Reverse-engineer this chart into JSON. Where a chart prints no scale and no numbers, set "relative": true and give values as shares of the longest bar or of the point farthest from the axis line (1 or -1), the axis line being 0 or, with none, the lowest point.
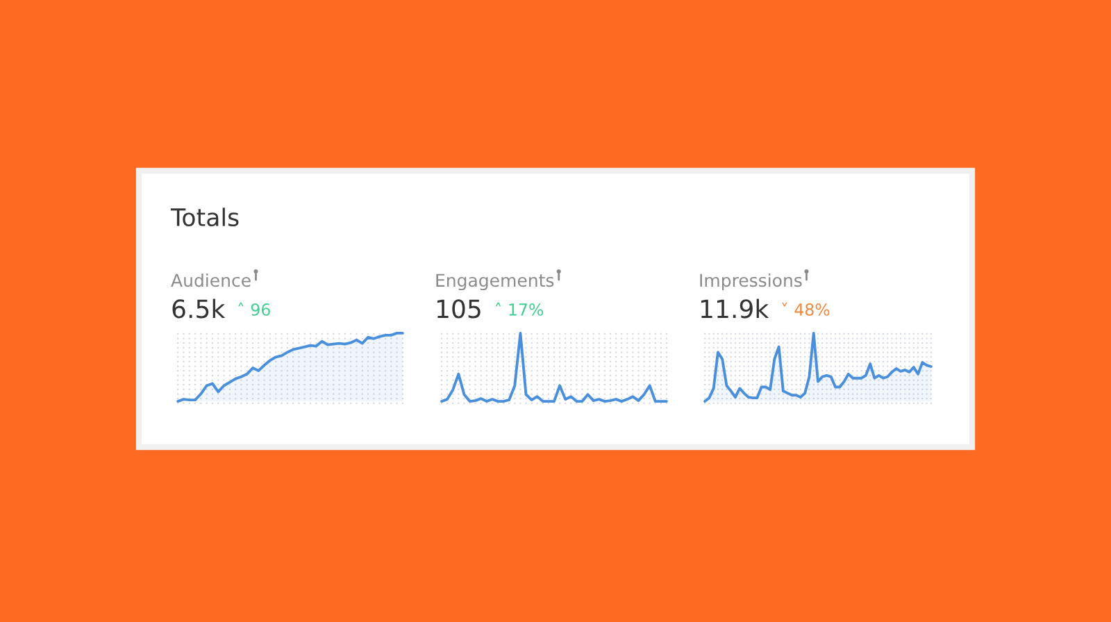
{
  "chart_data": [
    {
      "type": "other",
      "title": "Totals"
    },
    {
      "type": "area",
      "title": "Audience",
      "subtitle": "6.5k",
      "annotations": [
        "˄ 96"
      ],
      "relative": true,
      "grid": "x",
      "color": "#4a8fdc",
      "categories": [
        null,
        null,
        null,
        null,
        null,
        null,
        null,
        null,
        null,
        null,
        null,
        null,
        null,
        null,
        null,
        null,
        null,
        null,
        null,
        null,
        null,
        null,
        null,
        null,
        null,
        null,
        null,
        null,
        null,
        null,
        null,
        null,
        null,
        null,
        null,
        null,
        null,
        null,
        null,
        null
      ],
      "values": [
        0,
        0.03,
        0.02,
        0.02,
        0.11,
        0.23,
        0.26,
        0.14,
        0.23,
        0.28,
        0.33,
        0.36,
        0.4,
        0.49,
        0.45,
        0.53,
        0.6,
        0.65,
        0.67,
        0.72,
        0.76,
        0.78,
        0.8,
        0.82,
        0.81,
        0.88,
        0.83,
        0.84,
        0.85,
        0.84,
        0.86,
        0.9,
        0.85,
        0.94,
        0.92,
        0.95,
        0.97,
        0.97,
        1.0,
        1.0
      ]
    },
    {
      "type": "line",
      "title": "Engagements",
      "subtitle": "105",
      "annotations": [
        "˄ 17%"
      ],
      "relative": true,
      "grid": "x",
      "color": "#4a8fdc",
      "categories": [
        null,
        null,
        null,
        null,
        null,
        null,
        null,
        null,
        null,
        null,
        null,
        null,
        null,
        null,
        null,
        null,
        null,
        null,
        null,
        null,
        null,
        null,
        null,
        null,
        null,
        null,
        null,
        null,
        null,
        null,
        null,
        null,
        null,
        null,
        null,
        null,
        null,
        null,
        null,
        null,
        null
      ],
      "values": [
        0,
        0.03,
        0.17,
        0.4,
        0.1,
        0,
        0.01,
        0.04,
        0,
        0.03,
        0,
        0,
        0.02,
        0.23,
        1,
        0.1,
        0.02,
        0.07,
        0,
        0,
        0,
        0.23,
        0.03,
        0.07,
        0,
        0,
        0.1,
        0.01,
        0.03,
        0,
        0.01,
        0.03,
        0,
        0.03,
        0.07,
        0.01,
        0.1,
        0.23,
        0,
        0,
        0
      ]
    },
    {
      "type": "area",
      "title": "Impressions",
      "subtitle": "11.9k",
      "annotations": [
        "˅ 48%"
      ],
      "relative": true,
      "grid": "x",
      "color": "#4a8fdc",
      "categories": [
        null,
        null,
        null,
        null,
        null,
        null,
        null,
        null,
        null,
        null,
        null,
        null,
        null,
        null,
        null,
        null,
        null,
        null,
        null,
        null,
        null,
        null,
        null,
        null,
        null,
        null,
        null,
        null,
        null,
        null,
        null,
        null,
        null,
        null,
        null,
        null,
        null,
        null,
        null,
        null,
        null,
        null,
        null,
        null,
        null,
        null,
        null,
        null,
        null,
        null,
        null,
        null,
        null
      ],
      "values": [
        0,
        0.05,
        0.19,
        0.72,
        0.62,
        0.23,
        0.15,
        0.06,
        0.19,
        0.12,
        0.06,
        0.05,
        0.05,
        0.21,
        0.21,
        0.17,
        0.62,
        0.8,
        0.15,
        0.12,
        0.09,
        0.09,
        0.06,
        0.12,
        0.36,
        1,
        0.29,
        0.36,
        0.38,
        0.36,
        0.21,
        0.21,
        0.29,
        0.4,
        0.34,
        0.34,
        0.34,
        0.38,
        0.55,
        0.34,
        0.38,
        0.34,
        0.36,
        0.43,
        0.48,
        0.44,
        0.46,
        0.43,
        0.5,
        0.4,
        0.57,
        0.53,
        0.51
      ]
    }
  ]
}
